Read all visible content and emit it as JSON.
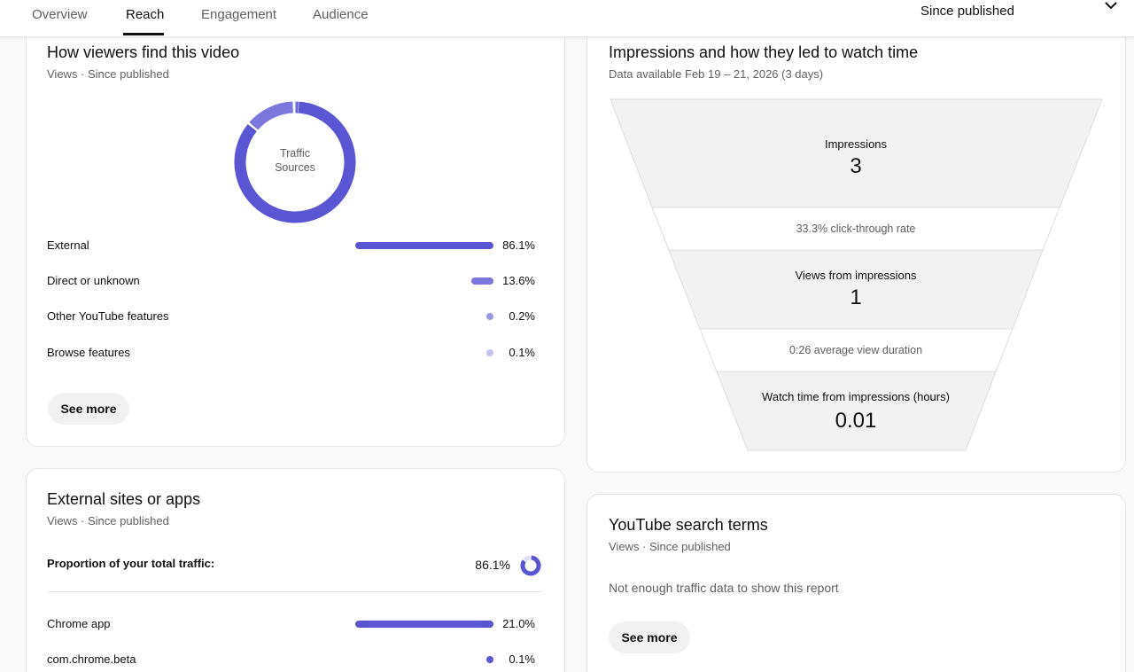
{
  "tabs": [
    {
      "label": "Overview"
    },
    {
      "label": "Reach"
    },
    {
      "label": "Engagement"
    },
    {
      "label": "Audience"
    }
  ],
  "period": {
    "label": "Since published"
  },
  "traffic_card": {
    "title": "How viewers find this video",
    "subtitle": "Views · Since published",
    "donut_center": [
      "Traffic",
      "Sources"
    ],
    "rows": [
      {
        "label": "External",
        "value": "86.1%",
        "fraction": 0.861,
        "color": "#5a55d2"
      },
      {
        "label": "Direct or unknown",
        "value": "13.6%",
        "fraction": 0.136,
        "color": "#7b77dc"
      },
      {
        "label": "Other YouTube features",
        "value": "0.2%",
        "fraction": 0.002,
        "color": "#9c99e4"
      },
      {
        "label": "Browse features",
        "value": "0.1%",
        "fraction": 0.001,
        "color": "#c3c1ef"
      }
    ],
    "see_more": "See more"
  },
  "funnel_card": {
    "title": "Impressions and how they led to watch time",
    "subtitle": "Data available Feb 19 – 21, 2026 (3 days)",
    "impressions_label": "Impressions",
    "impressions_value": "3",
    "ctr": "33.3% click-through rate",
    "views_label": "Views from impressions",
    "views_value": "1",
    "avd": "0:26 average view duration",
    "watch_label": "Watch time from impressions (hours)",
    "watch_value": "0.01"
  },
  "external_card": {
    "title": "External sites or apps",
    "subtitle": "Views · Since published",
    "proportion_label": "Proportion of your total traffic:",
    "proportion_value": "86.1%",
    "proportion_fraction": 0.861,
    "rows": [
      {
        "label": "Chrome app",
        "value": "21.0%",
        "fraction": 0.21
      },
      {
        "label": "com.chrome.beta",
        "value": "0.1%",
        "fraction": 0.001
      }
    ]
  },
  "search_card": {
    "title": "YouTube search terms",
    "subtitle": "Views · Since published",
    "message": "Not enough traffic data to show this report",
    "see_more": "See more"
  },
  "colors": {
    "accent": "#5a55d2",
    "accent_light": "#7b77dc"
  }
}
